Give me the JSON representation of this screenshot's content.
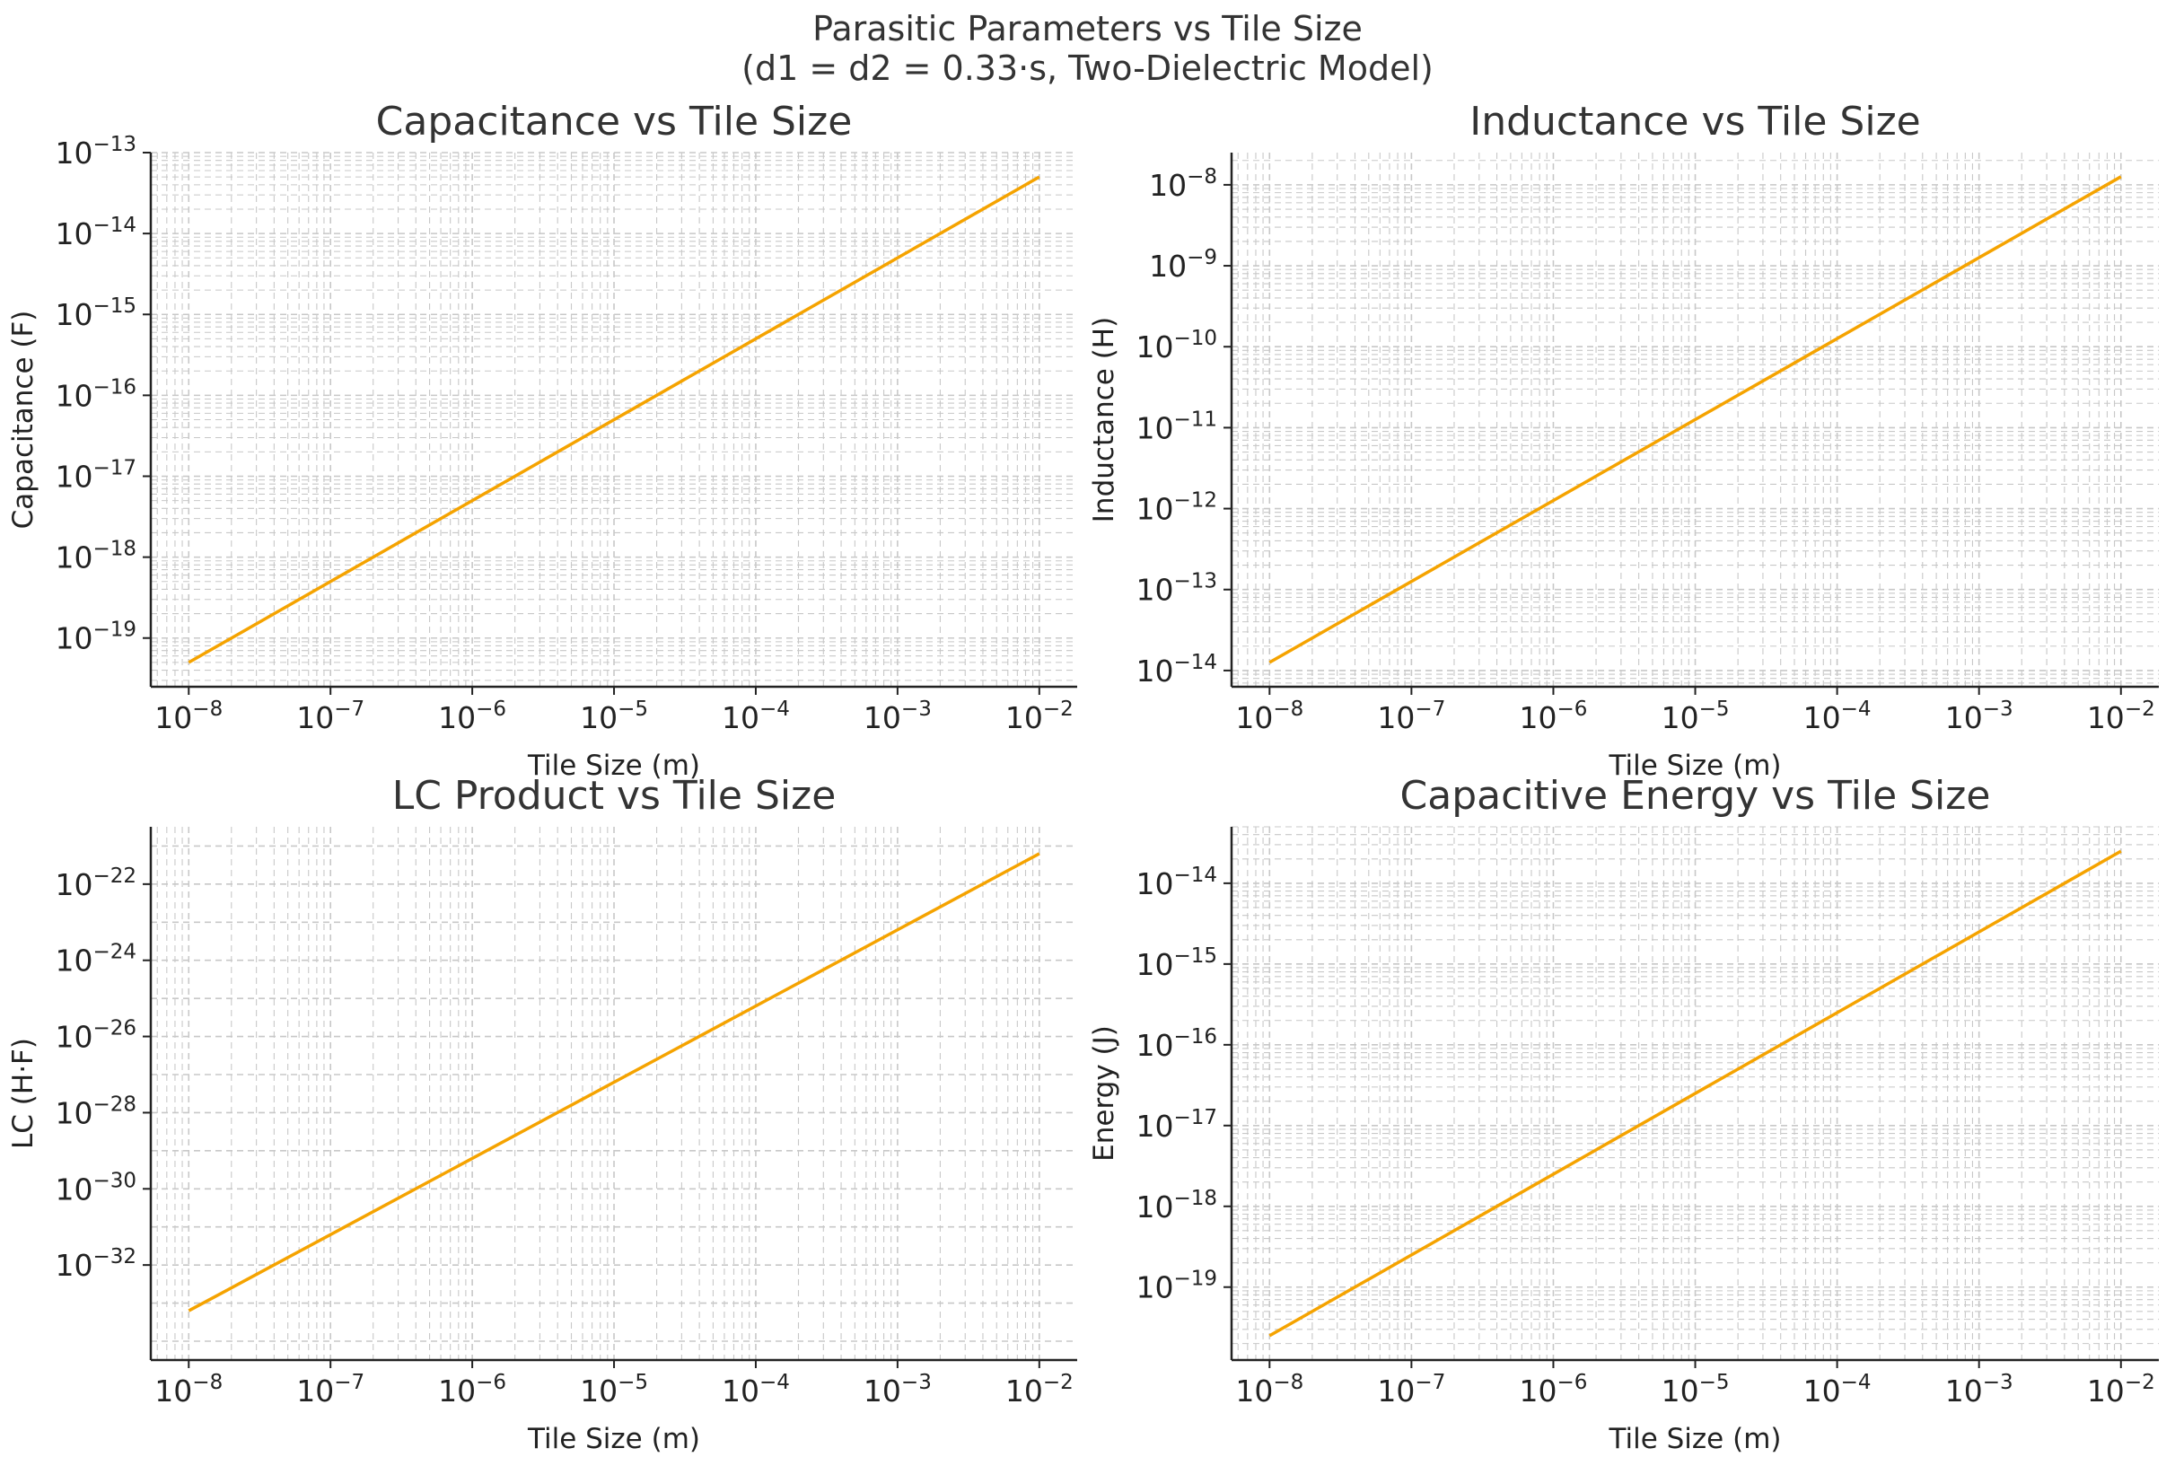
{
  "figure": {
    "title_line1": "Parasitic Parameters vs Tile Size",
    "title_line2": "(d1 = d2 = 0.33·s, Two-Dielectric Model)"
  },
  "colors": {
    "line": "#f5a300",
    "axis": "#222222",
    "grid": "#c8c8c8",
    "text": "#333333"
  },
  "chart_data": [
    {
      "type": "line",
      "title": "Capacitance vs Tile Size",
      "xlabel": "Tile Size (m)",
      "ylabel": "Capacitance (F)",
      "xscale": "log",
      "yscale": "log",
      "xlim": [
        5.4e-09,
        0.0185
      ],
      "ylim": [
        2.5e-20,
        1e-13
      ],
      "xticks": [
        -8,
        -7,
        -6,
        -5,
        -4,
        -3,
        -2
      ],
      "yticks": [
        -19,
        -18,
        -17,
        -16,
        -15,
        -14,
        -13
      ],
      "minor_y_grid": true,
      "grid": true,
      "series": [
        {
          "x": [
            1e-08,
            0.01
          ],
          "y": [
            5e-20,
            5e-14
          ]
        }
      ]
    },
    {
      "type": "line",
      "title": "Inductance vs Tile Size",
      "xlabel": "Tile Size (m)",
      "ylabel": "Inductance (H)",
      "xscale": "log",
      "yscale": "log",
      "xlim": [
        5.4e-09,
        0.0185
      ],
      "ylim": [
        6.3e-15,
        2.5e-08
      ],
      "xticks": [
        -8,
        -7,
        -6,
        -5,
        -4,
        -3,
        -2
      ],
      "yticks": [
        -14,
        -13,
        -12,
        -11,
        -10,
        -9,
        -8
      ],
      "minor_y_grid": true,
      "grid": true,
      "series": [
        {
          "x": [
            1e-08,
            0.01
          ],
          "y": [
            1.26e-14,
            1.26e-08
          ]
        }
      ]
    },
    {
      "type": "line",
      "title": "LC Product vs Tile Size",
      "xlabel": "Tile Size (m)",
      "ylabel": "LC (H·F)",
      "xscale": "log",
      "yscale": "log",
      "xlim": [
        5.4e-09,
        0.0185
      ],
      "ylim": [
        3.2e-35,
        3.2e-21
      ],
      "xticks": [
        -8,
        -7,
        -6,
        -5,
        -4,
        -3,
        -2
      ],
      "yticks": [
        -32,
        -30,
        -28,
        -26,
        -24,
        -22
      ],
      "minor_y_grid": false,
      "grid": true,
      "series": [
        {
          "x": [
            1e-08,
            0.01
          ],
          "y": [
            6.3e-34,
            6.3e-22
          ]
        }
      ]
    },
    {
      "type": "line",
      "title": "Capacitive Energy vs Tile Size",
      "xlabel": "Tile Size (m)",
      "ylabel": "Energy (J)",
      "xscale": "log",
      "yscale": "log",
      "xlim": [
        5.4e-09,
        0.0185
      ],
      "ylim": [
        1.25e-20,
        5e-14
      ],
      "xticks": [
        -8,
        -7,
        -6,
        -5,
        -4,
        -3,
        -2
      ],
      "yticks": [
        -19,
        -18,
        -17,
        -16,
        -15,
        -14
      ],
      "minor_y_grid": true,
      "grid": true,
      "series": [
        {
          "x": [
            1e-08,
            0.01
          ],
          "y": [
            2.5e-20,
            2.5e-14
          ]
        }
      ]
    }
  ]
}
